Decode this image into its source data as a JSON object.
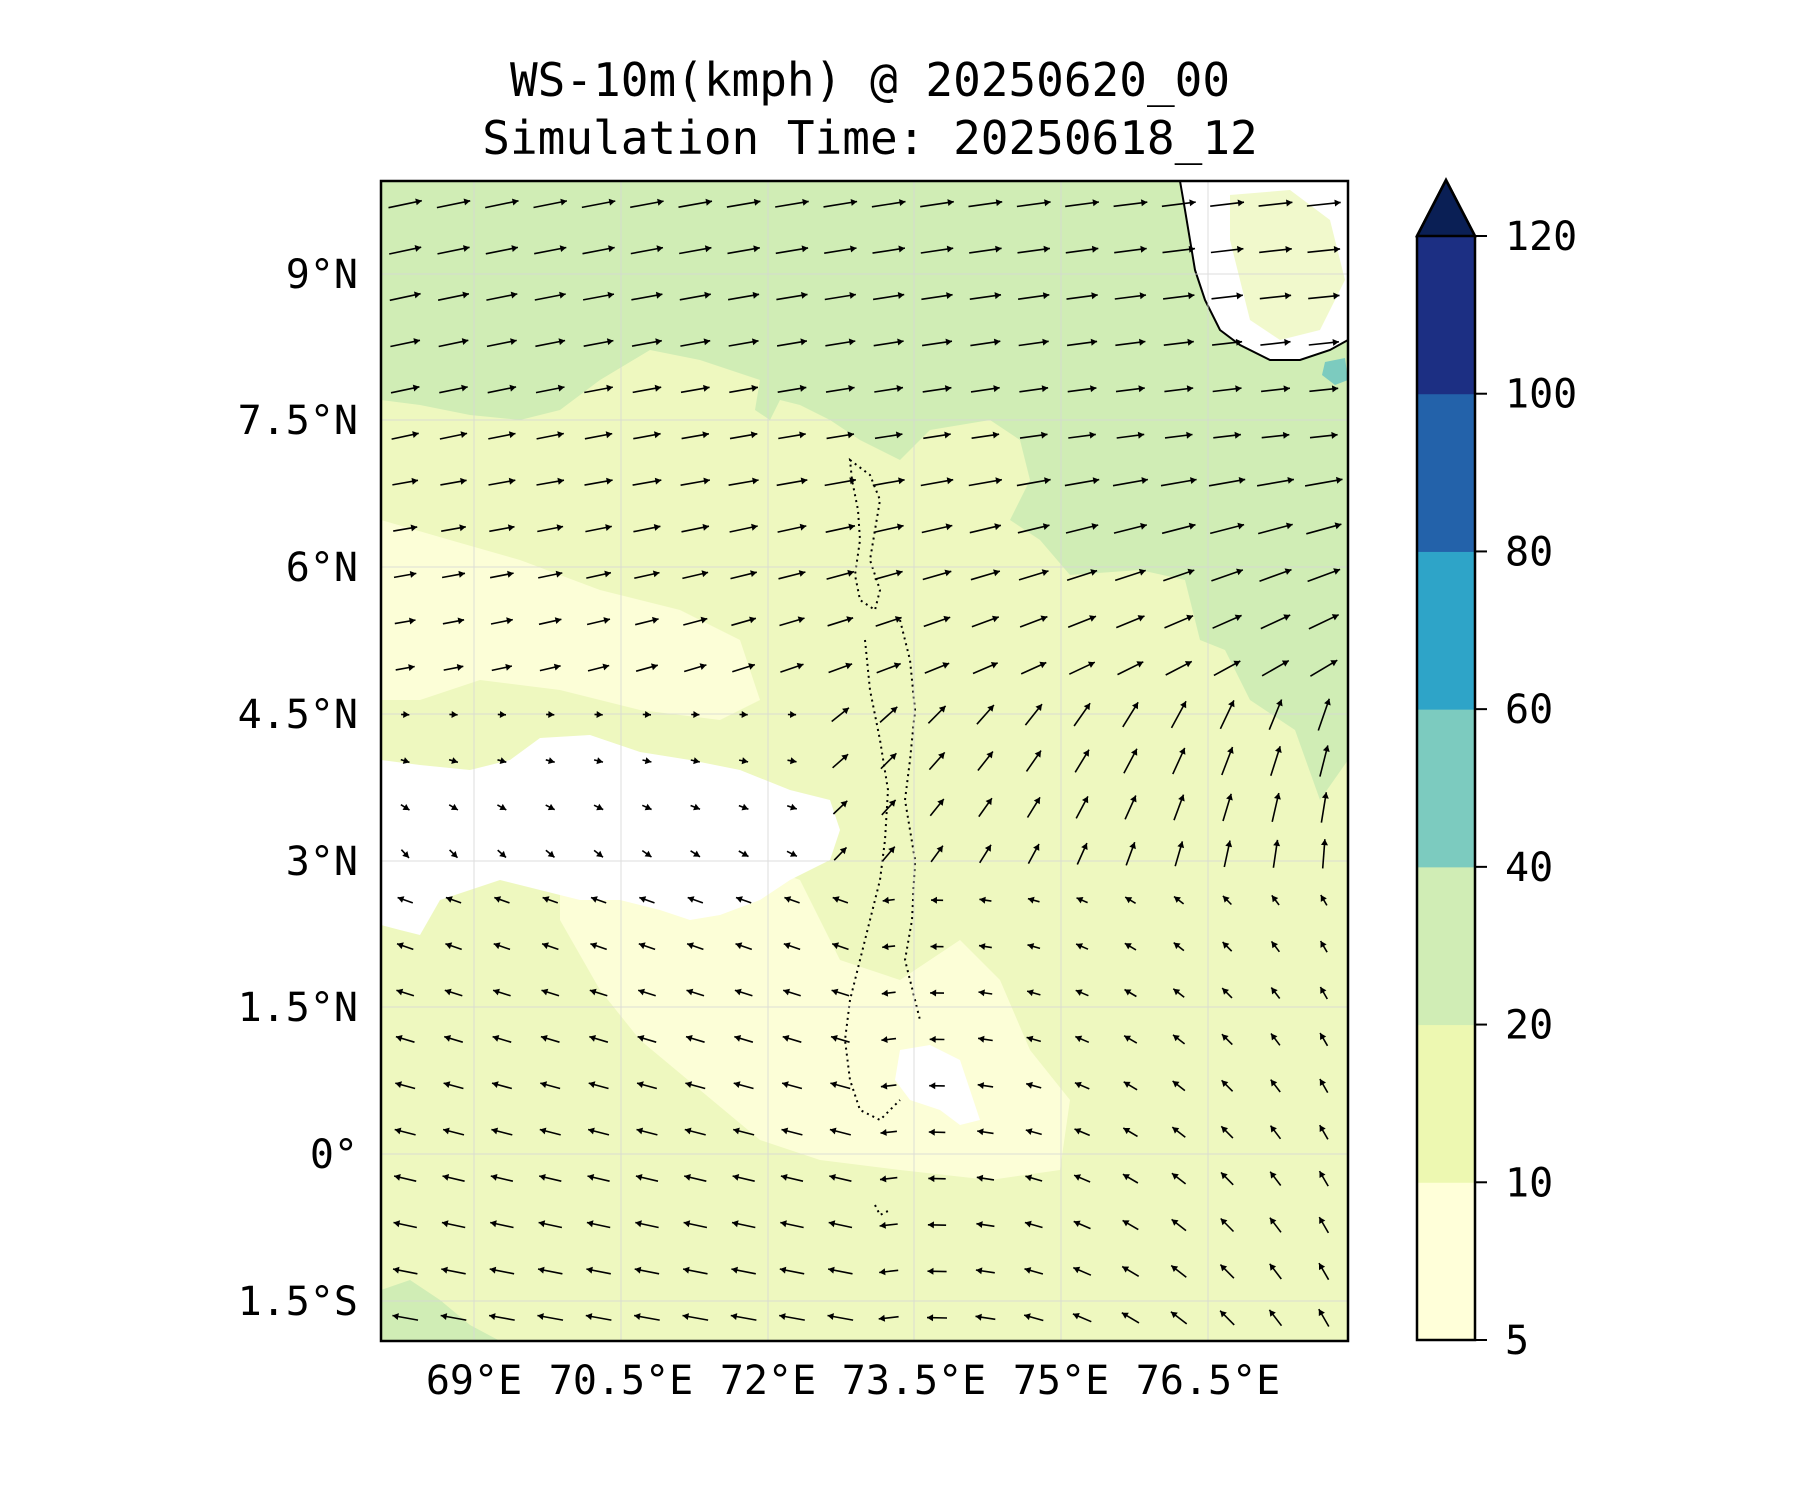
{
  "title": "WS-10m(kmph) @ 20250620_00",
  "subtitle": "Simulation Time: 20250618_12",
  "map": {
    "variable": "10 m wind speed (kmph) with wind direction arrows",
    "lon_range": [
      67.7,
      77.6
    ],
    "lat_range": [
      -1.9,
      9.9
    ],
    "lon_ticks": [
      {
        "value": 69,
        "label": "69°E"
      },
      {
        "value": 70.5,
        "label": "70.5°E"
      },
      {
        "value": 72,
        "label": "72°E"
      },
      {
        "value": 73.5,
        "label": "73.5°E"
      },
      {
        "value": 75,
        "label": "75°E"
      },
      {
        "value": 76.5,
        "label": "76.5°E"
      }
    ],
    "lat_ticks": [
      {
        "value": 9,
        "label": "9°N"
      },
      {
        "value": 7.5,
        "label": "7.5°N"
      },
      {
        "value": 6,
        "label": "6°N"
      },
      {
        "value": 4.5,
        "label": "4.5°N"
      },
      {
        "value": 3,
        "label": "3°N"
      },
      {
        "value": 1.5,
        "label": "1.5°N"
      },
      {
        "value": 0,
        "label": "0°"
      },
      {
        "value": -1.5,
        "label": "1.5°S"
      }
    ],
    "gridlines": true,
    "features": [
      "India southwest coast (top-right)",
      "Maldives atolls (dotted outlines, center)"
    ]
  },
  "colorbar": {
    "levels": [
      5,
      10,
      20,
      40,
      60,
      80,
      100,
      120
    ],
    "labels": [
      "5",
      "10",
      "20",
      "40",
      "60",
      "80",
      "100",
      "120"
    ],
    "colors": [
      "#ffffd9",
      "#edf8b1",
      "#d0edb5",
      "#7ccbbf",
      "#2ea4c8",
      "#2362aa",
      "#1c2f83",
      "#0a1f55"
    ],
    "extend": "max",
    "placement": "right"
  },
  "colors": {
    "band_5_10": "#ffffd9",
    "band_10_20": "#eef8bf",
    "band_20_40": "#d0edb5",
    "arrow": "#000000"
  }
}
